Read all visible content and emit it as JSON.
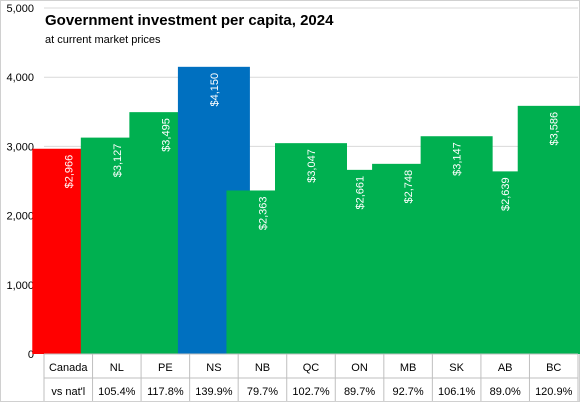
{
  "chart_data": {
    "type": "bar",
    "title": "Government investment per capita, 2024",
    "subtitle": "at current market prices",
    "categories": [
      "Canada",
      "NL",
      "PE",
      "NS",
      "NB",
      "QC",
      "ON",
      "MB",
      "SK",
      "AB",
      "BC"
    ],
    "values": [
      2966,
      3127,
      3495,
      4150,
      2363,
      3047,
      2661,
      2748,
      3147,
      2639,
      3586
    ],
    "data_labels": [
      "$2,966",
      "$3,127",
      "$3,495",
      "$4,150",
      "$2,363",
      "$3,047",
      "$2,661",
      "$2,748",
      "$3,147",
      "$2,639",
      "$3,586"
    ],
    "bar_colors": [
      "#ff0000",
      "#00b050",
      "#00b050",
      "#0070c0",
      "#00b050",
      "#00b050",
      "#00b050",
      "#00b050",
      "#00b050",
      "#00b050",
      "#00b050"
    ],
    "ylim": [
      0,
      5000
    ],
    "yticks": [
      "0",
      "1,000",
      "2,000",
      "3,000",
      "4,000",
      "5,000"
    ],
    "ytick_values": [
      0,
      1000,
      2000,
      3000,
      4000,
      5000
    ],
    "grid": true,
    "table_row_label": "vs nat'l",
    "table_row_values": [
      "105.4%",
      "117.8%",
      "139.9%",
      "79.7%",
      "102.7%",
      "89.7%",
      "92.7%",
      "106.1%",
      "89.0%",
      "120.9%"
    ]
  }
}
